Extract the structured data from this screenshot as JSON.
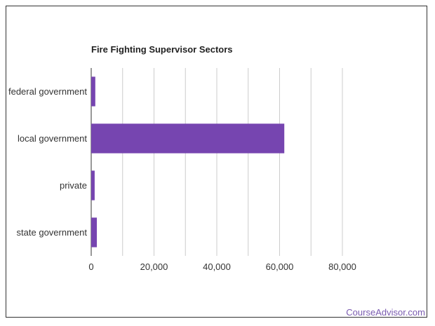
{
  "brand": "CourseAdvisor.com",
  "colors": {
    "bar": "#7645b0",
    "grid": "#cccccc",
    "axis": "#333333",
    "brand": "#7a5bb0"
  },
  "chart_data": {
    "type": "bar",
    "orientation": "horizontal",
    "title": "Fire Fighting Supervisor Sectors",
    "categories": [
      "federal government",
      "local government",
      "private",
      "state government"
    ],
    "values": [
      1300,
      61500,
      1100,
      1800
    ],
    "xlim": [
      0,
      80000
    ],
    "xticks": [
      0,
      20000,
      40000,
      60000,
      80000
    ],
    "xtick_labels": [
      "0",
      "20,000",
      "40,000",
      "60,000",
      "80,000"
    ],
    "grid": true,
    "legend": "none"
  }
}
